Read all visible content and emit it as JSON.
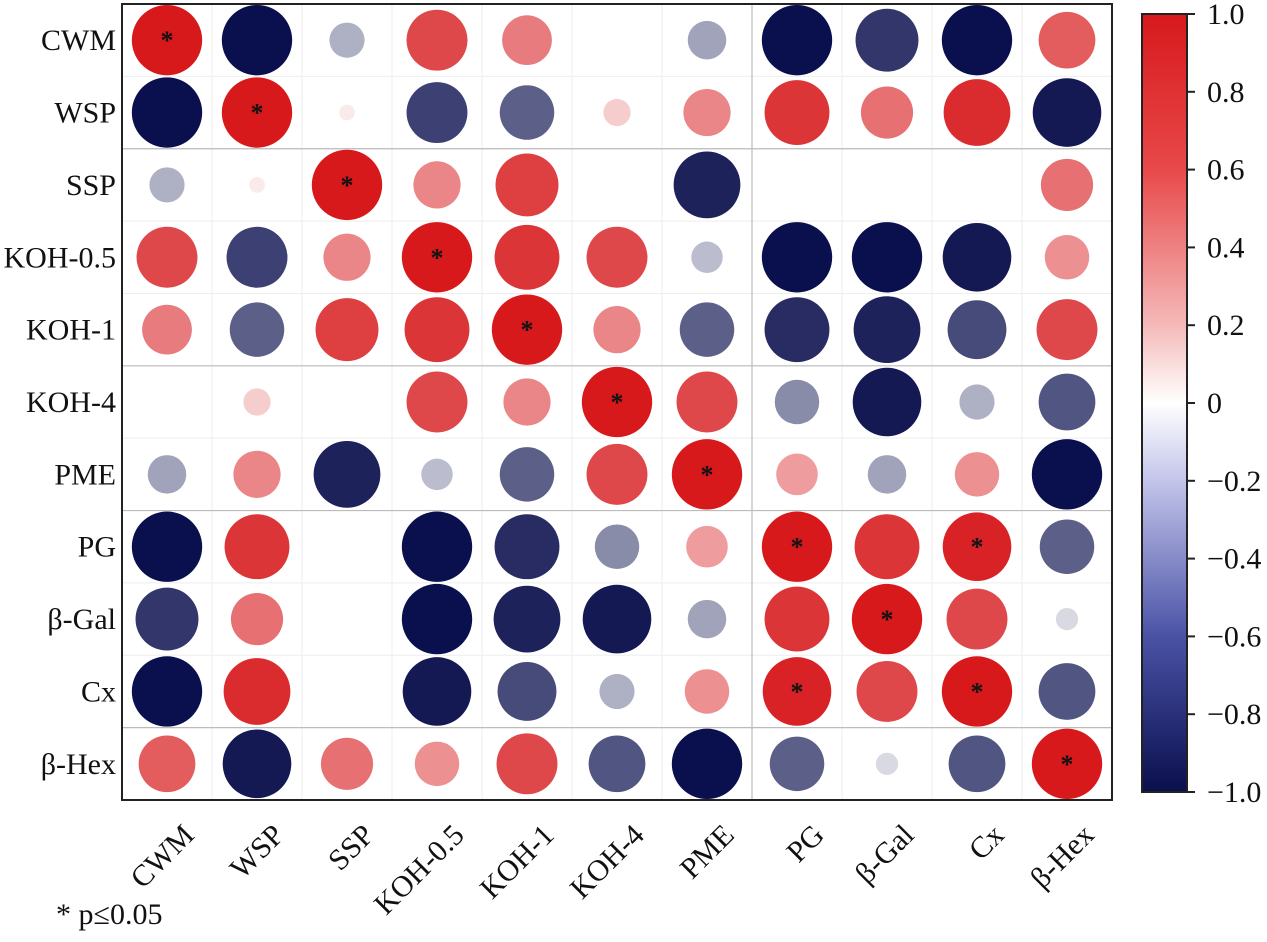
{
  "chart_data": {
    "type": "heatmap",
    "style": "circle correlation matrix, lower-left and upper-right",
    "variables": [
      "CWM",
      "WSP",
      "SSP",
      "KOH-0.5",
      "KOH-1",
      "KOH-4",
      "PME",
      "PG",
      "β-Gal",
      "Cx",
      "β-Hex"
    ],
    "values": [
      [
        1.0,
        -1.0,
        -0.25,
        0.75,
        0.5,
        0.0,
        -0.3,
        -1.0,
        -0.8,
        -1.0,
        0.65
      ],
      [
        -1.0,
        1.0,
        0.05,
        -0.75,
        -0.6,
        0.15,
        0.45,
        0.85,
        0.55,
        0.9,
        -0.95
      ],
      [
        -0.25,
        0.05,
        1.0,
        0.45,
        0.8,
        0.0,
        -0.9,
        0.0,
        0.0,
        0.0,
        0.55
      ],
      [
        0.75,
        -0.75,
        0.45,
        1.0,
        0.85,
        0.75,
        -0.2,
        -1.0,
        -1.0,
        -0.95,
        0.4
      ],
      [
        0.5,
        -0.6,
        0.8,
        0.85,
        1.0,
        0.45,
        -0.6,
        -0.85,
        -0.9,
        -0.7,
        0.75
      ],
      [
        0.0,
        0.15,
        0.0,
        0.75,
        0.45,
        1.0,
        0.75,
        -0.4,
        -0.95,
        -0.25,
        -0.65
      ],
      [
        -0.3,
        0.45,
        -0.9,
        -0.2,
        -0.6,
        0.75,
        1.0,
        0.35,
        -0.3,
        0.4,
        -1.0
      ],
      [
        -1.0,
        0.85,
        0.0,
        -1.0,
        -0.85,
        -0.4,
        0.35,
        1.0,
        0.85,
        0.95,
        -0.6
      ],
      [
        -0.8,
        0.55,
        0.0,
        -1.0,
        -0.9,
        -0.95,
        -0.3,
        0.85,
        1.0,
        0.75,
        -0.1
      ],
      [
        -1.0,
        0.9,
        0.0,
        -0.95,
        -0.7,
        -0.25,
        0.4,
        0.95,
        0.75,
        1.0,
        -0.65
      ],
      [
        0.65,
        -0.95,
        0.55,
        0.4,
        0.75,
        -0.65,
        -1.0,
        -0.6,
        -0.1,
        -0.65,
        1.0
      ]
    ],
    "significant": [
      [
        0,
        0
      ],
      [
        1,
        1
      ],
      [
        2,
        2
      ],
      [
        3,
        3
      ],
      [
        4,
        4
      ],
      [
        5,
        5
      ],
      [
        6,
        6
      ],
      [
        7,
        7
      ],
      [
        7,
        9
      ],
      [
        8,
        8
      ],
      [
        9,
        7
      ],
      [
        9,
        9
      ],
      [
        10,
        10
      ]
    ],
    "significance_symbol": "*",
    "colorbar": {
      "min": -1.0,
      "max": 1.0,
      "ticks": [
        "1.0",
        "0.8",
        "0.6",
        "0.4",
        "0.2",
        "0",
        "−0.2",
        "−0.4",
        "−0.6",
        "−0.8",
        "−1.0"
      ],
      "colors": {
        "negative": "#0a0f4d",
        "zero": "#ffffff",
        "positive": "#d7191c"
      }
    },
    "group_dividers_after_row": [
      1,
      4,
      6,
      9
    ],
    "group_dividers_after_col": [
      6
    ]
  },
  "footnote": "* p≤0.05"
}
